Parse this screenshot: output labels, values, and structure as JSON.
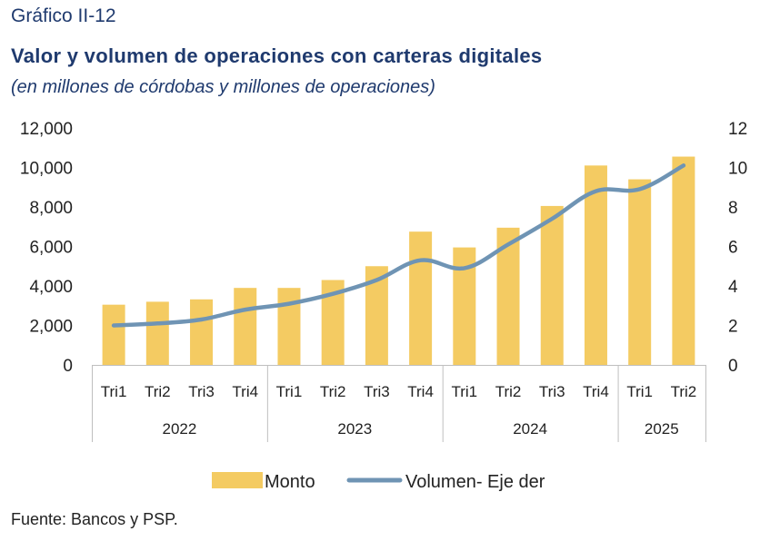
{
  "header": {
    "label": "Gráfico II-12",
    "title": "Valor y volumen de operaciones con carteras digitales",
    "subtitle": "(en millones de córdobas y millones de operaciones)"
  },
  "source": "Fuente: Bancos y PSP.",
  "colors": {
    "bar": "#f4cb62",
    "line": "#6f94b4",
    "axis": "#bfbfbf",
    "title": "#1f3a6e"
  },
  "chart_data": {
    "type": "bar",
    "categories": [
      "Tri1",
      "Tri2",
      "Tri3",
      "Tri4",
      "Tri1",
      "Tri2",
      "Tri3",
      "Tri4",
      "Tri1",
      "Tri2",
      "Tri3",
      "Tri4",
      "Tri1",
      "Tri2"
    ],
    "groups": [
      {
        "label": "2022",
        "count": 4
      },
      {
        "label": "2023",
        "count": 4
      },
      {
        "label": "2024",
        "count": 4
      },
      {
        "label": "2025",
        "count": 2
      }
    ],
    "series": [
      {
        "name": "Monto",
        "type": "bar",
        "axis": "left",
        "values": [
          3050,
          3200,
          3320,
          3900,
          3900,
          4300,
          5000,
          6750,
          5950,
          6950,
          8050,
          10100,
          9400,
          10550
        ]
      },
      {
        "name": "Volumen- Eje der",
        "type": "line",
        "axis": "right",
        "values": [
          2.0,
          2.1,
          2.3,
          2.8,
          3.1,
          3.6,
          4.3,
          5.3,
          4.9,
          6.1,
          7.4,
          8.8,
          8.9,
          10.1
        ]
      }
    ],
    "yleft": {
      "min": 0,
      "max": 12000,
      "ticks": [
        "0",
        "2,000",
        "4,000",
        "6,000",
        "8,000",
        "10,000",
        "12,000"
      ]
    },
    "yright": {
      "min": 0,
      "max": 12,
      "ticks": [
        "0",
        "2",
        "4",
        "6",
        "8",
        "10",
        "12"
      ]
    },
    "legend": "bottom",
    "grid": false
  }
}
